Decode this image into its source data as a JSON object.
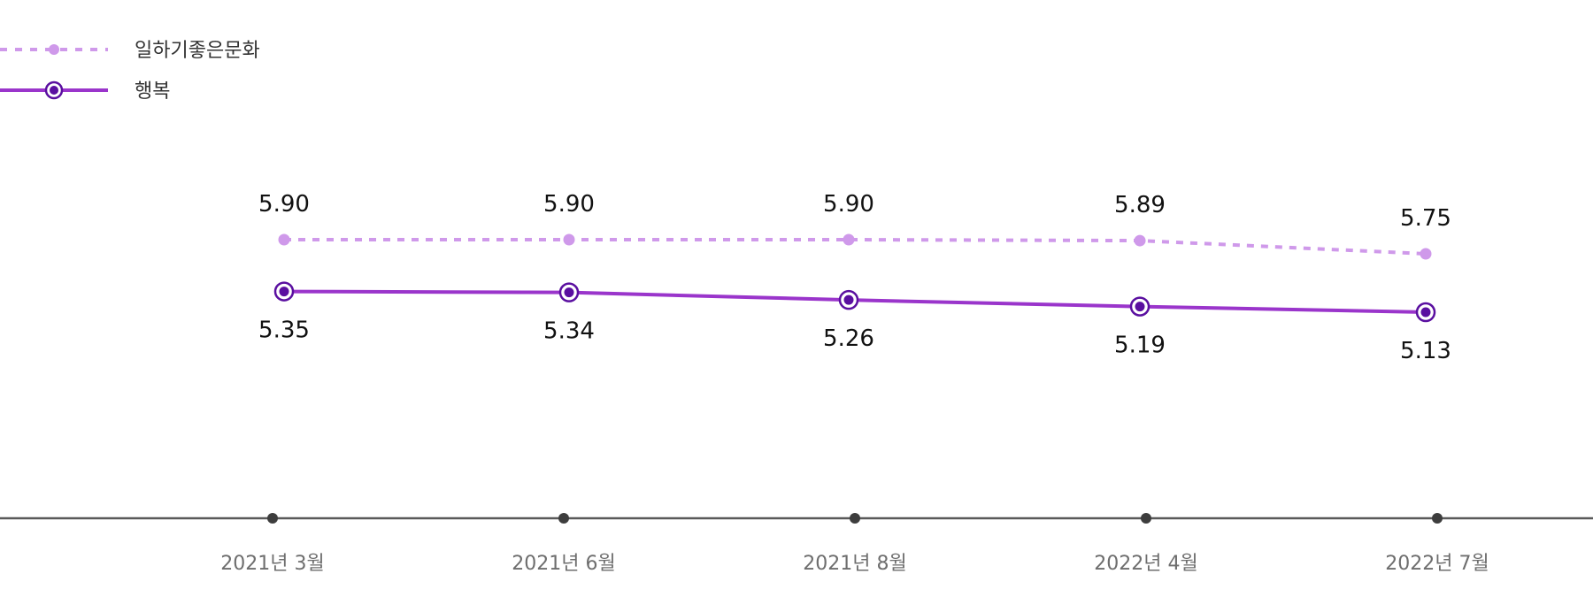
{
  "chart_data": {
    "type": "line",
    "title": "",
    "xlabel": "",
    "ylabel": "",
    "categories": [
      "2021년 3월",
      "2021년 6월",
      "2021년 8월",
      "2022년 4월",
      "2022년 7월"
    ],
    "series": [
      {
        "name": "일하기좋은문화",
        "values": [
          5.9,
          5.9,
          5.9,
          5.89,
          5.75
        ],
        "labels": [
          "5.90",
          "5.90",
          "5.90",
          "5.89",
          "5.75"
        ],
        "color": "#cf99ea",
        "line_style": "dotted",
        "label_position": "above"
      },
      {
        "name": "행복",
        "values": [
          5.35,
          5.34,
          5.26,
          5.19,
          5.13
        ],
        "labels": [
          "5.35",
          "5.34",
          "5.26",
          "5.19",
          "5.13"
        ],
        "color": "#9a35cb",
        "marker_color": "#5a0fa0",
        "line_style": "solid",
        "label_position": "below"
      }
    ],
    "legend_position": "top-left",
    "grid": false,
    "axis_color": "#595959"
  }
}
